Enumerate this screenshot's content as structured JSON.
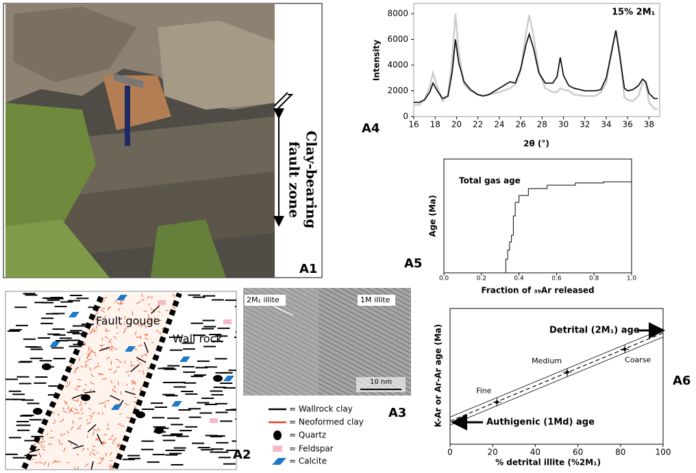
{
  "photo": {
    "label": "A1",
    "annotation": [
      "Clay-bearing",
      "fault zone"
    ]
  },
  "schematic": {
    "label": "A2",
    "fault_gouge": "Fault gouge",
    "wall_rock": "Wall rock"
  },
  "tem": {
    "label": "A3",
    "left": "2M₁ illite",
    "right": "1M illite",
    "scale": "10 nm"
  },
  "legend": {
    "items": [
      "= Wallrock clay",
      "= Neoformed clay",
      "= Quartz",
      "= Feldspar",
      "= Calcite"
    ]
  },
  "chart_data": [
    {
      "type": "line",
      "label": "A4",
      "title": "15% 2M₁",
      "ylabel": "Intensity",
      "xlabel": "2θ (°)",
      "x": [
        16,
        16.5,
        17,
        17.5,
        17.8,
        18.2,
        18.7,
        19.2,
        19.6,
        19.9,
        20.2,
        20.7,
        21.3,
        22,
        22.5,
        23,
        24,
        25,
        25.5,
        26,
        26.5,
        26.8,
        27.2,
        27.7,
        28.3,
        29,
        29.4,
        29.7,
        30,
        30.5,
        31,
        32,
        33,
        33.5,
        34,
        34.5,
        34.9,
        35.3,
        35.7,
        36,
        36.5,
        37,
        37.4,
        37.7,
        38,
        38.5,
        38.8
      ],
      "series": [
        {
          "color": "#cccccc",
          "values": [
            900,
            900,
            1300,
            2300,
            3400,
            2300,
            1200,
            1600,
            4500,
            8000,
            5000,
            2500,
            2000,
            1700,
            1600,
            1700,
            1900,
            2200,
            2500,
            3600,
            6500,
            7900,
            6300,
            3500,
            2200,
            1900,
            1900,
            2200,
            2100,
            2000,
            1700,
            1600,
            1600,
            1900,
            2600,
            5200,
            6700,
            4800,
            1500,
            1300,
            1200,
            1600,
            2600,
            2600,
            1100,
            600,
            600
          ]
        },
        {
          "color": "#111111",
          "values": [
            1100,
            1100,
            1300,
            1900,
            2600,
            2000,
            1400,
            1600,
            3500,
            6000,
            4200,
            2700,
            2100,
            1700,
            1600,
            1700,
            2200,
            2700,
            2600,
            3700,
            5600,
            6400,
            5300,
            3400,
            2600,
            2600,
            3100,
            4600,
            3200,
            2400,
            2200,
            2000,
            2000,
            2100,
            3000,
            5000,
            6700,
            4500,
            2200,
            2000,
            2100,
            2400,
            2900,
            2700,
            1800,
            1400,
            1400
          ]
        }
      ],
      "xlim": [
        16,
        39
      ],
      "ylim": [
        0,
        8800
      ],
      "xticks": [
        16,
        18,
        20,
        22,
        24,
        26,
        28,
        30,
        32,
        34,
        36,
        38
      ],
      "yticks": [
        0,
        2000,
        4000,
        6000,
        8000
      ]
    },
    {
      "type": "step",
      "label": "A5",
      "annotation": "Total gas age",
      "ylabel": "Age (Ma)",
      "xlabel": "Fraction of ₃₉Ar released",
      "x": [
        0,
        0.32,
        0.33,
        0.34,
        0.35,
        0.36,
        0.37,
        0.38,
        0.4,
        0.45,
        0.55,
        0.7,
        0.85,
        0.97,
        1.0
      ],
      "values": [
        0,
        0,
        12,
        20,
        27,
        33,
        50,
        62,
        68,
        74,
        77,
        79,
        80,
        80,
        79
      ],
      "color": "#000000",
      "xlim": [
        0,
        1
      ],
      "ylim": [
        0,
        100
      ],
      "xticks": [
        {
          "value": 0,
          "label": "0.0"
        },
        0.2,
        0.4,
        0.6,
        0.8,
        {
          "value": 1,
          "label": "1.0"
        }
      ]
    },
    {
      "type": "mixing",
      "label": "A6",
      "ylabel": "K-Ar or Ar-Ar age (Ma)",
      "xlabel": "% detrital illite (%2M₁)",
      "annotations": [
        "Detrital (2M₁) age",
        "Authigenic (1Md) age"
      ],
      "x": [
        22,
        55,
        82
      ],
      "x_errors": [
        2,
        2,
        2
      ],
      "values": [
        31,
        53,
        70
      ],
      "errors": [
        3,
        3,
        3
      ],
      "point_labels": [
        "Fine",
        "Medium",
        "Coarse"
      ],
      "fit": {
        "x": [
          0,
          100
        ],
        "values": [
          17,
          82
        ],
        "upper": [
          20,
          85
        ],
        "lower": [
          14,
          79
        ]
      },
      "xlim": [
        0,
        100
      ],
      "ylim": [
        0,
        100
      ],
      "xticks": [
        0,
        20,
        40,
        60,
        80,
        100
      ]
    }
  ]
}
